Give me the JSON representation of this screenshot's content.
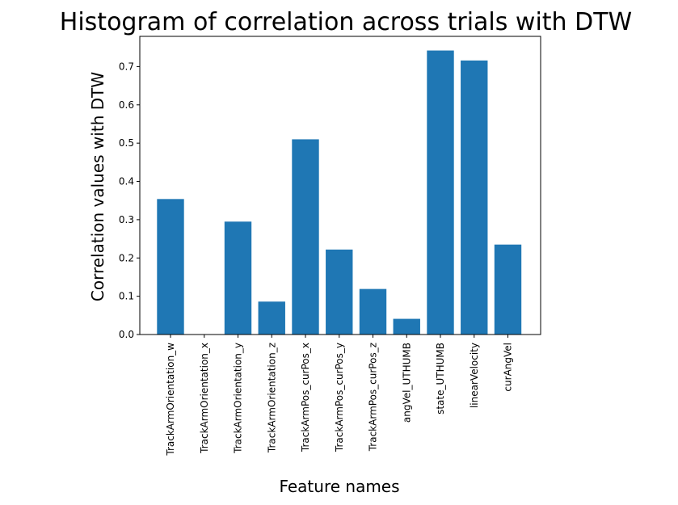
{
  "chart_data": {
    "type": "bar",
    "title": "Histogram of correlation across trials with DTW",
    "xlabel": "Feature names",
    "ylabel": "Correlation values with DTW",
    "categories": [
      "TrackArmOrientation_w",
      "TrackArmOrientation_x",
      "TrackArmOrientation_y",
      "TrackArmOrientation_z",
      "TrackArmPos_curPos_x",
      "TrackArmPos_curPos_y",
      "TrackArmPos_curPos_z",
      "angVel_UTHUMB",
      "state_UTHUMB",
      "linearVelocity",
      "curAngVel"
    ],
    "values": [
      0.354,
      0.0,
      0.295,
      0.086,
      0.51,
      0.222,
      0.119,
      0.041,
      0.742,
      0.716,
      0.235
    ],
    "ylim": [
      0,
      0.779
    ],
    "yticks": [
      0.0,
      0.1,
      0.2,
      0.3,
      0.4,
      0.5,
      0.6,
      0.7
    ],
    "ytick_labels": [
      "0.0",
      "0.1",
      "0.2",
      "0.3",
      "0.4",
      "0.5",
      "0.6",
      "0.7"
    ],
    "bar_color": "#1f77b4",
    "grid": false,
    "legend": "none"
  }
}
